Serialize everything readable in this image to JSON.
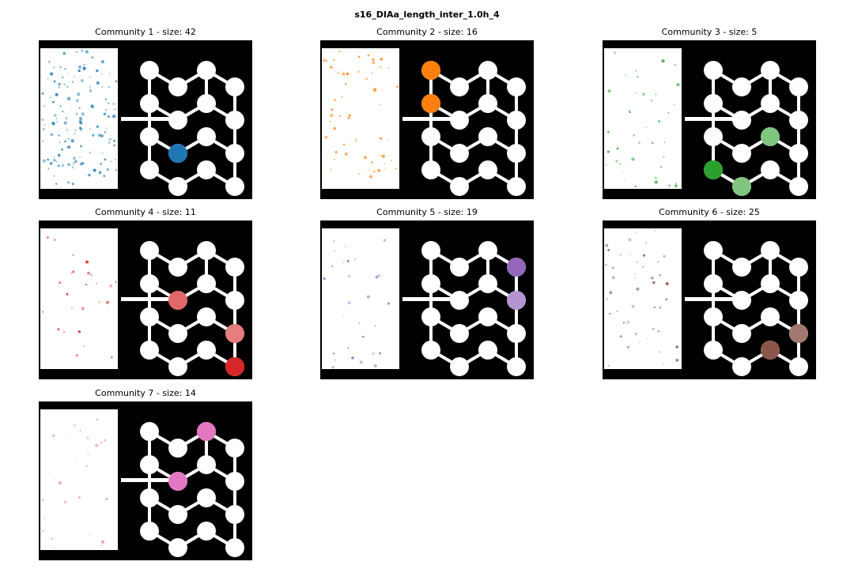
{
  "title": "s16_DIAa_length_inter_1.0h_4",
  "panels": [
    {
      "title": "Community 1 - size: 42",
      "color": "#1f77b4"
    },
    {
      "title": "Community 2 - size: 16",
      "color": "#ff7f0e"
    },
    {
      "title": "Community 3 - size: 5",
      "color": "#2ca02c"
    },
    {
      "title": "Community 4 - size: 11",
      "color": "#d62728"
    },
    {
      "title": "Community 5 - size: 19",
      "color": "#9467bd"
    },
    {
      "title": "Community 6 - size: 25",
      "color": "#8c564b"
    },
    {
      "title": "Community 7 - size: 14",
      "color": "#e377c2"
    }
  ]
}
